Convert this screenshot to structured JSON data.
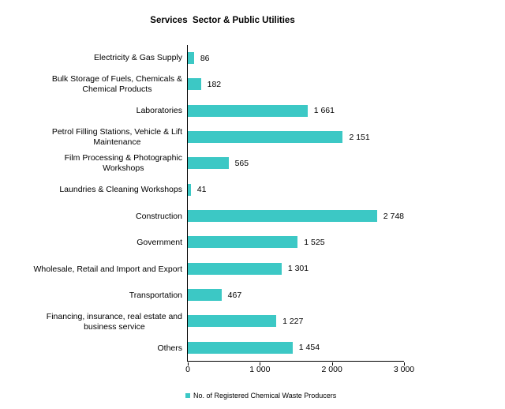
{
  "title": "Services  Sector & Public Utilities",
  "colors": {
    "bar": "#3CC8C5",
    "axis": "#000000",
    "text": "#000000",
    "background": "#ffffff"
  },
  "axis": {
    "ticks": [
      "0",
      "1 000",
      "2 000",
      "3 000"
    ],
    "tick_values": [
      0,
      1000,
      2000,
      3000
    ],
    "max": 3000
  },
  "legend": {
    "label": "No. of Registered Chemical Waste Producers",
    "marker_color": "#3CC8C5"
  },
  "chart_data": {
    "type": "bar",
    "orientation": "horizontal",
    "title": "Services  Sector & Public Utilities",
    "xlabel": "",
    "ylabel": "",
    "xlim": [
      0,
      3000
    ],
    "x_ticks": [
      0,
      1000,
      2000,
      3000
    ],
    "grid": false,
    "bar_color": "#3CC8C5",
    "legend": [
      "No. of Registered Chemical Waste Producers"
    ],
    "legend_position": "bottom",
    "categories": [
      "Electricity & Gas Supply",
      "Bulk Storage of Fuels, Chemicals & Chemical Products",
      "Laboratories",
      "Petrol Filling Stations, Vehicle & Lift Maintenance",
      "Film Processing & Photographic Workshops",
      "Laundries & Cleaning Workshops",
      "Construction",
      "Government",
      "Wholesale, Retail and Import and Export",
      "Transportation",
      "Financing, insurance, real estate and business service",
      "Others"
    ],
    "category_label_lines": [
      [
        "Electricity & Gas Supply"
      ],
      [
        "Bulk Storage of Fuels, Chemicals &",
        "Chemical Products"
      ],
      [
        "Laboratories"
      ],
      [
        "Petrol Filling Stations, Vehicle & Lift",
        "Maintenance"
      ],
      [
        "Film Processing & Photographic",
        "Workshops"
      ],
      [
        "Laundries & Cleaning Workshops"
      ],
      [
        "Construction"
      ],
      [
        "Government"
      ],
      [
        "Wholesale, Retail and Import and Export"
      ],
      [
        "Transportation"
      ],
      [
        "Financing, insurance, real estate and",
        "business service"
      ],
      [
        "Others"
      ]
    ],
    "values": [
      86,
      182,
      1661,
      2151,
      565,
      41,
      2748,
      1525,
      1301,
      467,
      1227,
      1454
    ],
    "value_labels": [
      "86",
      "182",
      "1 661",
      "2 151",
      "565",
      "41",
      "2 748",
      "1 525",
      "1 301",
      "467",
      "1 227",
      "1 454"
    ]
  }
}
